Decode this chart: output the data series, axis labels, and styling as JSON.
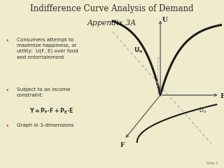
{
  "bg_color": "#f0ebcc",
  "title_line1": "Indifference Curve Analysis of Demand",
  "title_line2": "Appendix 3A",
  "title_fontsize": 8.5,
  "subtitle_fontsize": 7.8,
  "bullet_color": "#cc6600",
  "text_color": "#2b2b2b",
  "bullets": [
    "Consumers attempt to\nmaximize happiness, or\nutility:  U(F, E) over food\nand entertainment",
    "Subject to an income\nconstraint:",
    "Graph in 3-dimensions"
  ],
  "diagram_curve_color": "#1a1a1a",
  "diagram_axis_color": "#555555",
  "diagram_dashed_color": "#aaaaaa",
  "slide_num": "Slide 1"
}
